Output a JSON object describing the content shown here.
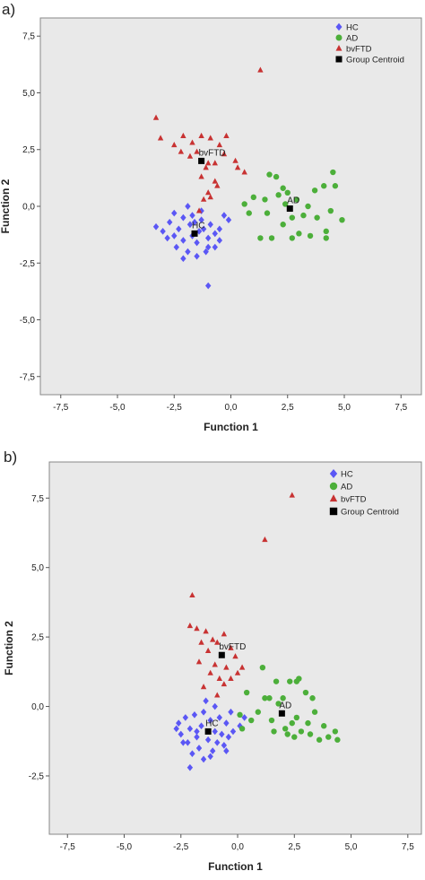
{
  "chart_data": [
    {
      "type": "scatter",
      "panel_label": "a)",
      "xlabel": "Function 1",
      "ylabel": "Function 2",
      "xlim": [
        -8.4,
        8.4
      ],
      "ylim": [
        -8.3,
        8.3
      ],
      "xticks": [
        {
          "value": -7.5,
          "label": "-7,5"
        },
        {
          "value": -5,
          "label": "-5,0"
        },
        {
          "value": -2.5,
          "label": "-2,5"
        },
        {
          "value": 0,
          "label": "0,0"
        },
        {
          "value": 2.5,
          "label": "2,5"
        },
        {
          "value": 5,
          "label": "5,0"
        },
        {
          "value": 7.5,
          "label": "7,5"
        }
      ],
      "yticks": [
        {
          "value": 7.5,
          "label": "7,5"
        },
        {
          "value": 5,
          "label": "5,0"
        },
        {
          "value": 2.5,
          "label": "2,5"
        },
        {
          "value": 0,
          "label": "0,0"
        },
        {
          "value": -2.5,
          "label": "-2,5"
        },
        {
          "value": -5,
          "label": "-5,0"
        },
        {
          "value": -7.5,
          "label": "-7,5"
        }
      ],
      "grid": false,
      "legend": "upper right",
      "series": [
        {
          "name": "HC",
          "color": "#5b57f5",
          "marker": "diamond",
          "x": [
            -3.3,
            -3.0,
            -2.7,
            -2.5,
            -2.3,
            -2.1,
            -1.9,
            -1.8,
            -1.7,
            -1.5,
            -1.3,
            -1.2,
            -1.0,
            -0.9,
            -0.7,
            -0.5,
            -0.3,
            -0.1,
            -2.1,
            -2.4,
            -1.9,
            -1.5,
            -1.1,
            -0.7,
            -2.1,
            -1.7,
            -1.3,
            -1.0,
            -1.4,
            -2.5,
            -1.0,
            -0.5,
            -1.6,
            -2.8
          ],
          "values": [
            -0.9,
            -1.1,
            -0.7,
            -1.3,
            -1.0,
            -0.5,
            0.0,
            -0.8,
            -1.3,
            -1.6,
            -0.6,
            -1.0,
            -1.4,
            -0.8,
            -1.2,
            -1.0,
            -0.4,
            -0.6,
            -1.5,
            -1.8,
            -2.0,
            -2.2,
            -2.0,
            -1.8,
            -2.3,
            -0.4,
            -0.2,
            -1.8,
            -1.1,
            -0.3,
            -3.5,
            -1.5,
            -0.7,
            -1.4
          ]
        },
        {
          "name": "AD",
          "color": "#4caf3a",
          "marker": "circle",
          "x": [
            0.6,
            0.8,
            1.0,
            1.3,
            1.5,
            1.6,
            1.8,
            1.7,
            2.0,
            2.1,
            2.3,
            2.4,
            2.5,
            2.7,
            2.7,
            2.9,
            3.0,
            3.2,
            3.4,
            3.5,
            3.7,
            3.8,
            4.1,
            4.2,
            4.4,
            4.5,
            4.6,
            4.9,
            4.2,
            2.3
          ],
          "values": [
            0.1,
            -0.3,
            0.4,
            -1.4,
            0.3,
            -0.3,
            -1.4,
            1.4,
            1.3,
            0.5,
            -0.8,
            0.1,
            0.6,
            -0.5,
            -1.4,
            0.3,
            -1.2,
            -0.4,
            0.0,
            -1.3,
            0.7,
            -0.5,
            0.9,
            -1.1,
            -0.2,
            1.5,
            0.9,
            -0.6,
            -1.4,
            0.8
          ]
        },
        {
          "name": "bvFTD",
          "color": "#c83232",
          "marker": "triangle",
          "x": [
            -3.3,
            -3.1,
            -2.5,
            -2.1,
            -1.7,
            -1.3,
            -0.9,
            -0.5,
            -0.3,
            -0.7,
            -1.1,
            -1.5,
            -1.8,
            -2.2,
            -0.2,
            0.2,
            0.6,
            0.3,
            -0.6,
            -1.0,
            -1.2,
            -1.3,
            -0.9,
            -1.4,
            -0.7,
            1.3,
            -1.0
          ],
          "values": [
            3.9,
            3.0,
            2.7,
            3.1,
            2.8,
            3.1,
            3.0,
            2.7,
            2.3,
            1.9,
            1.7,
            2.4,
            2.2,
            2.4,
            3.1,
            2.0,
            1.5,
            1.7,
            0.9,
            0.6,
            0.3,
            1.3,
            0.4,
            -0.2,
            1.1,
            6.0,
            1.9
          ]
        },
        {
          "name": "Group Centroid",
          "color": "#000000",
          "marker": "square",
          "x": [
            -1.6,
            2.6,
            -1.3
          ],
          "values": [
            -1.2,
            -0.1,
            2.0
          ],
          "point_labels": [
            "HC",
            "AD",
            "bvFTD"
          ]
        }
      ]
    },
    {
      "type": "scatter",
      "panel_label": "b)",
      "xlabel": "Function 1",
      "ylabel": "Function 2",
      "xlim": [
        -8.3,
        8.1
      ],
      "ylim": [
        -4.6,
        8.8
      ],
      "xticks": [
        {
          "value": -7.5,
          "label": "-7,5"
        },
        {
          "value": -5,
          "label": "-5,0"
        },
        {
          "value": -2.5,
          "label": "-2,5"
        },
        {
          "value": 0,
          "label": "0,0"
        },
        {
          "value": 2.5,
          "label": "2,5"
        },
        {
          "value": 5,
          "label": "5,0"
        },
        {
          "value": 7.5,
          "label": "7,5"
        }
      ],
      "yticks": [
        {
          "value": 7.5,
          "label": "7,5"
        },
        {
          "value": 5,
          "label": "5,0"
        },
        {
          "value": 2.5,
          "label": "2,5"
        },
        {
          "value": 0,
          "label": "0,0"
        },
        {
          "value": -2.5,
          "label": "-2,5"
        }
      ],
      "grid": false,
      "legend": "upper right",
      "series": [
        {
          "name": "HC",
          "color": "#5b57f5",
          "marker": "diamond",
          "x": [
            -2.6,
            -2.5,
            -2.3,
            -2.2,
            -2.1,
            -2.0,
            -2.1,
            -1.9,
            -1.8,
            -1.7,
            -1.6,
            -1.5,
            -1.4,
            -1.3,
            -1.2,
            -1.1,
            -1.0,
            -0.9,
            -0.8,
            -0.7,
            -0.6,
            -0.5,
            -0.4,
            -0.3,
            -0.2,
            0.1,
            0.3,
            -1.5,
            -1.8,
            -1.2,
            -2.4,
            -1.0,
            -0.5,
            -2.7
          ],
          "values": [
            -0.6,
            -1.0,
            -0.4,
            -1.3,
            -0.8,
            -1.7,
            -2.2,
            -0.3,
            -1.1,
            -1.5,
            -0.7,
            -1.9,
            0.2,
            -1.2,
            -0.5,
            -1.6,
            -0.9,
            -1.3,
            -0.4,
            -1.0,
            -1.4,
            -0.6,
            -1.1,
            -0.2,
            -0.9,
            -0.7,
            -0.4,
            -0.2,
            -0.9,
            -1.8,
            -1.3,
            0.0,
            -1.6,
            -0.8
          ]
        },
        {
          "name": "AD",
          "color": "#4caf3a",
          "marker": "circle",
          "x": [
            0.1,
            0.2,
            0.4,
            0.6,
            0.9,
            1.1,
            1.2,
            1.4,
            1.5,
            1.6,
            1.8,
            2.0,
            2.1,
            2.2,
            2.3,
            2.4,
            2.6,
            2.7,
            2.8,
            3.0,
            3.1,
            3.2,
            3.3,
            3.4,
            3.6,
            3.8,
            4.0,
            4.3,
            4.4,
            2.5,
            1.7,
            2.6
          ],
          "values": [
            -0.3,
            -0.8,
            0.5,
            -0.5,
            -0.2,
            1.4,
            0.3,
            0.3,
            -0.5,
            -0.9,
            0.1,
            0.3,
            -0.8,
            -1.0,
            0.9,
            -0.6,
            -0.4,
            1.0,
            -0.9,
            0.5,
            -0.6,
            -1.0,
            0.3,
            -0.2,
            -1.2,
            -0.7,
            -1.1,
            -0.9,
            -1.2,
            -1.1,
            0.9,
            0.9
          ]
        },
        {
          "name": "bvFTD",
          "color": "#c83232",
          "marker": "triangle",
          "x": [
            -2.0,
            -2.1,
            -1.8,
            -1.4,
            -1.1,
            -1.6,
            -1.3,
            -0.9,
            -0.6,
            -0.3,
            -0.1,
            0.2,
            -0.5,
            -0.8,
            -1.0,
            -1.2,
            -0.3,
            -0.6,
            0.0,
            -1.5,
            -0.9,
            1.2,
            2.4,
            -1.7
          ],
          "values": [
            4.0,
            2.9,
            2.8,
            2.7,
            2.4,
            2.3,
            2.0,
            2.3,
            2.6,
            2.1,
            1.8,
            1.4,
            1.4,
            1.0,
            1.5,
            1.2,
            1.0,
            0.8,
            1.2,
            0.7,
            0.4,
            6.0,
            7.6,
            1.6
          ]
        },
        {
          "name": "Group Centroid",
          "color": "#000000",
          "marker": "square",
          "x": [
            -1.3,
            1.95,
            -0.7
          ],
          "values": [
            -0.9,
            -0.25,
            1.85
          ],
          "point_labels": [
            "HC",
            "AD",
            "bvFTD"
          ]
        }
      ]
    }
  ]
}
